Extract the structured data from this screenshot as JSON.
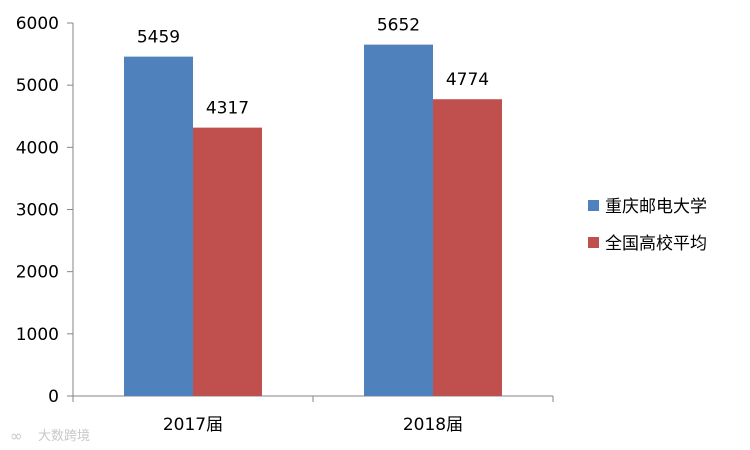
{
  "chart_data": {
    "type": "bar",
    "categories": [
      "2017届",
      "2018届"
    ],
    "series": [
      {
        "name": "重庆邮电大学",
        "values": [
          5459,
          5652
        ],
        "color": "#4f81bd"
      },
      {
        "name": "全国高校平均",
        "values": [
          4317,
          4774
        ],
        "color": "#c0504d"
      }
    ],
    "title": "",
    "xlabel": "",
    "ylabel": "",
    "ylim": [
      0,
      6000
    ],
    "yticks": [
      "0",
      "1000",
      "2000",
      "3000",
      "4000",
      "5000",
      "6000"
    ],
    "grid": false,
    "legend_position": "right"
  },
  "watermark": {
    "text": "大数跨境",
    "icon": "logo-mark-icon"
  }
}
